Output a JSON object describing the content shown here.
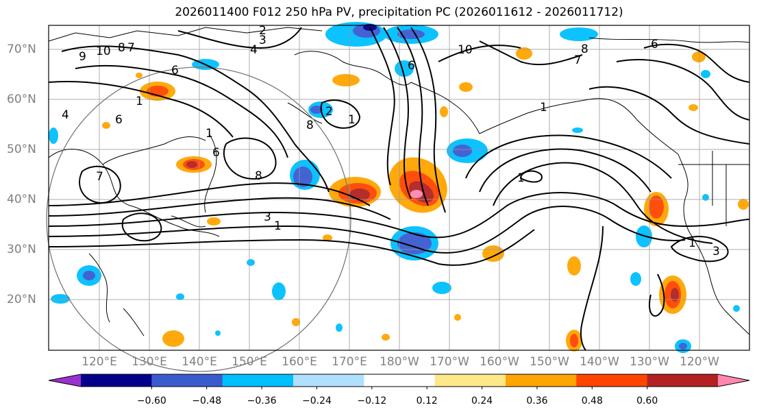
{
  "title": "2026011400 F012 250 hPa PV, precipitation PC (2026011612 - 2026011712)",
  "latitude_labels": [
    "70°N",
    "60°N",
    "50°N",
    "40°N",
    "30°N",
    "20°N"
  ],
  "longitude_labels": [
    "120°E",
    "130°E",
    "140°E",
    "150°E",
    "160°E",
    "170°E",
    "180°W",
    "170°W",
    "160°W",
    "150°W",
    "140°W",
    "130°W",
    "120°W"
  ],
  "colorbar": {
    "ticks": [
      "−0.60",
      "−0.48",
      "−0.36",
      "−0.24",
      "−0.12",
      "0.12",
      "0.24",
      "0.36",
      "0.48",
      "0.60"
    ],
    "colors": [
      "#9932cc",
      "#00008b",
      "#3a5bd0",
      "#00bfff",
      "#b0e0ff",
      "#ffffff",
      "#ffe88a",
      "#ffa500",
      "#ff4500",
      "#b22222",
      "#ff88b0"
    ]
  },
  "contour_labels": [
    "2",
    "3",
    "4",
    "10",
    "9",
    "8",
    "7",
    "6",
    "1",
    "4",
    "6",
    "7",
    "8",
    "6",
    "1",
    "1",
    "8",
    "2",
    "6",
    "1",
    "3",
    "1",
    "10",
    "8",
    "7",
    "6",
    "1",
    "1",
    "3"
  ]
}
